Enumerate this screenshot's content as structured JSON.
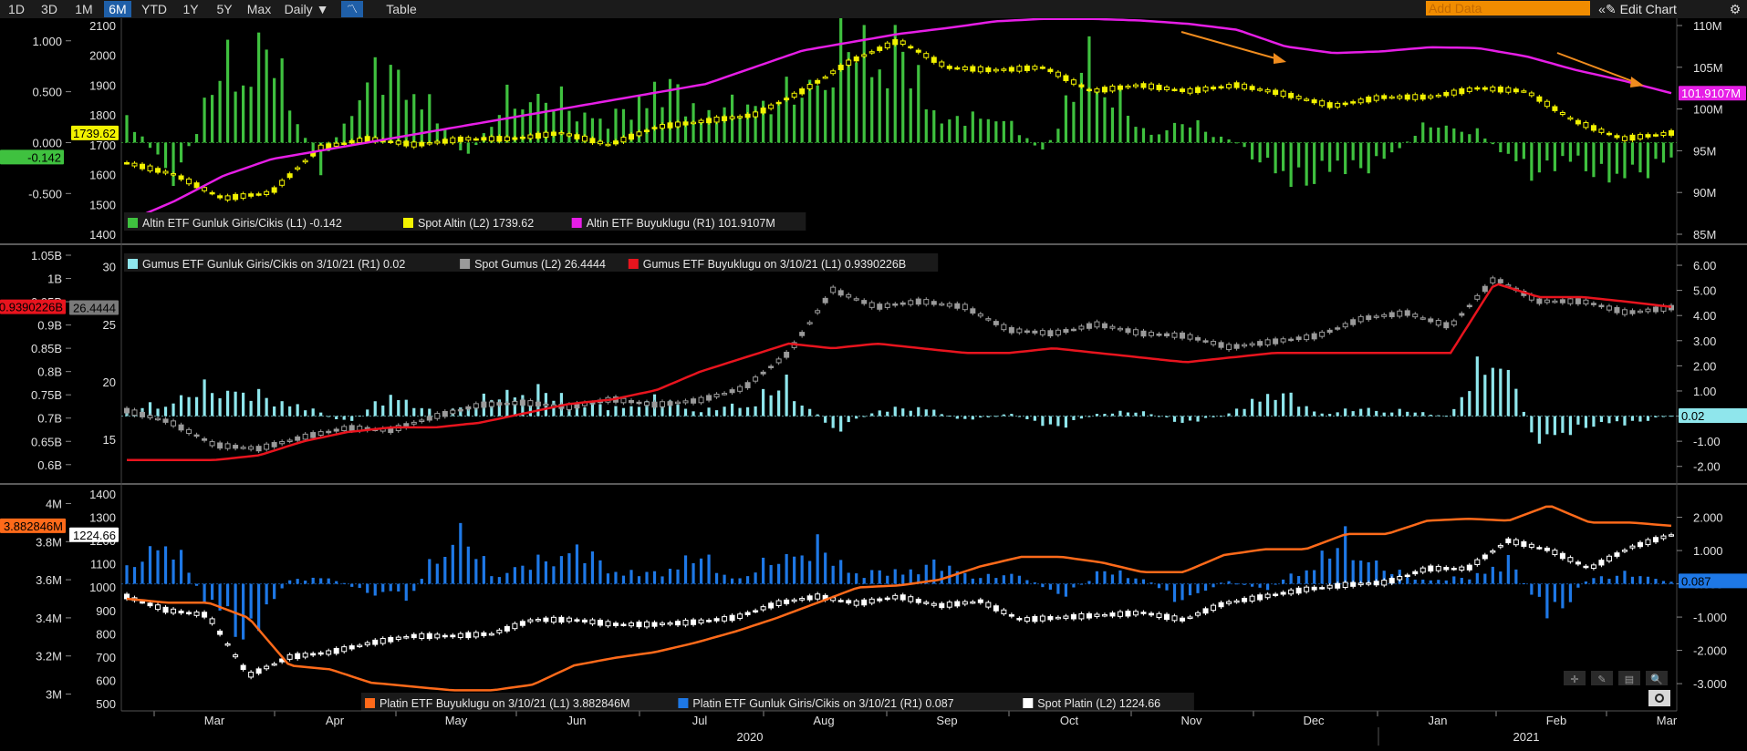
{
  "toolbar": {
    "ranges": [
      "1D",
      "3D",
      "1M",
      "6M",
      "YTD",
      "1Y",
      "5Y",
      "Max"
    ],
    "active_range": "6M",
    "interval": "Daily ▼",
    "table_label": "Table",
    "add_data_placeholder": "Add Data",
    "edit_chart_label": "Edit Chart",
    "rewind_icon": "«",
    "edit_icon": "✎",
    "settings_icon": "⚙"
  },
  "colors": {
    "gold_flow": "#3fc13f",
    "gold_spot": "#f2f200",
    "gold_size": "#e61ee6",
    "silver_flow": "#8fe6ec",
    "silver_spot": "#9a9a9a",
    "silver_size": "#e8141e",
    "plat_size": "#ff6a1a",
    "plat_flow": "#1e78e6",
    "plat_spot": "#ffffff",
    "arrow": "#f08c1e"
  },
  "x_axis": {
    "months": [
      "Mar",
      "Apr",
      "May",
      "Jun",
      "Jul",
      "Aug",
      "Sep",
      "Oct",
      "Nov",
      "Dec",
      "Jan",
      "Feb",
      "Mar"
    ],
    "years": [
      "2020",
      "2021"
    ]
  },
  "panel_tools": [
    "✛",
    "✎",
    "▤",
    "🔍"
  ],
  "chart_data": [
    {
      "type": "bar",
      "panel": "gold",
      "left_axis_1": {
        "ticks": [
          "1.000",
          "0.500",
          "0.000",
          "-0.500"
        ],
        "ylim": [
          -0.9,
          1.15
        ]
      },
      "left_axis_2": {
        "ticks": [
          "2100",
          "2000",
          "1900",
          "1800",
          "1700",
          "1600",
          "1500",
          "1400"
        ],
        "ylim": [
          1400,
          2100
        ]
      },
      "right_axis": {
        "ticks": [
          "110M",
          "105M",
          "100M",
          "95M",
          "90M",
          "85M"
        ],
        "ylim": [
          85,
          110
        ]
      },
      "last_value_tags": {
        "flow": "-0.142",
        "spot": "1739.62",
        "size": "101.9107M"
      },
      "legend": [
        {
          "name": "Altin ETF Gunluk Giris/Cikis (L1)",
          "value": "-0.142",
          "color_key": "gold_flow"
        },
        {
          "name": "Spot Altin (L2)",
          "value": "1739.62",
          "color_key": "gold_spot"
        },
        {
          "name": "Altin ETF Buyuklugu (R1)",
          "value": "101.9107M",
          "color_key": "gold_size"
        }
      ],
      "size_series": [
        86.5,
        89,
        92,
        94,
        95,
        96,
        97,
        98,
        99,
        100,
        101,
        102,
        103,
        105,
        107,
        108,
        109,
        109.7,
        110.5,
        110.8,
        110.8,
        110.6,
        110.2,
        109.5,
        107.5,
        106.7,
        106.9,
        107.4,
        107.3,
        106.3,
        104.7,
        103.4,
        101.9
      ],
      "spot_series": [
        1640,
        1600,
        1520,
        1540,
        1690,
        1720,
        1700,
        1720,
        1720,
        1740,
        1700,
        1760,
        1780,
        1800,
        1880,
        1980,
        2050,
        1960,
        1950,
        1960,
        1880,
        1900,
        1880,
        1900,
        1870,
        1830,
        1860,
        1860,
        1890,
        1880,
        1780,
        1720,
        1739.62
      ],
      "flow_series": [
        0.3,
        -0.4,
        0.8,
        0.9,
        -0.3,
        0.7,
        0.6,
        -0.2,
        0.5,
        0.4,
        0.2,
        0.6,
        0.3,
        0.4,
        0.5,
        1.0,
        0.9,
        0.2,
        0.3,
        -0.1,
        0.9,
        0.1,
        0.2,
        0.0,
        -0.4,
        -0.3,
        -0.2,
        0.2,
        0.1,
        -0.3,
        -0.2,
        -0.4,
        -0.142
      ]
    },
    {
      "type": "bar",
      "panel": "silver",
      "left_axis_1": {
        "ticks": [
          "1.05B",
          "1B",
          "0.95B",
          "0.9B",
          "0.85B",
          "0.8B",
          "0.75B",
          "0.7B",
          "0.65B",
          "0.6B"
        ],
        "ylim": [
          0.58,
          1.05
        ]
      },
      "left_axis_2": {
        "ticks": [
          "30",
          "25",
          "20",
          "15"
        ],
        "ylim": [
          12,
          31
        ]
      },
      "right_axis": {
        "ticks": [
          "6.00",
          "5.00",
          "4.00",
          "3.00",
          "2.00",
          "1.00",
          "0.00",
          "-1.00",
          "-2.00"
        ],
        "ylim": [
          -2.3,
          6.4
        ]
      },
      "last_value_tags": {
        "size": "0.9390226B",
        "spot": "26.4444",
        "flow": "0.02"
      },
      "legend": [
        {
          "name": "Gumus ETF Gunluk Giris/Cikis on 3/10/21 (R1)",
          "value": "0.02",
          "color_key": "silver_flow"
        },
        {
          "name": "Spot Gumus (L2)",
          "value": "26.4444",
          "color_key": "silver_spot"
        },
        {
          "name": "Gumus ETF Buyuklugu on 3/10/21 (L1)",
          "value": "0.9390226B",
          "color_key": "silver_size"
        }
      ],
      "size_series": [
        0.61,
        0.61,
        0.61,
        0.62,
        0.65,
        0.67,
        0.68,
        0.68,
        0.69,
        0.71,
        0.73,
        0.74,
        0.76,
        0.8,
        0.83,
        0.86,
        0.85,
        0.86,
        0.85,
        0.84,
        0.84,
        0.85,
        0.84,
        0.83,
        0.82,
        0.83,
        0.84,
        0.84,
        0.84,
        0.84,
        0.84,
        0.99,
        0.96,
        0.96,
        0.95,
        0.939
      ],
      "spot_series": [
        17.5,
        16.5,
        14.5,
        14.2,
        15.2,
        16.0,
        15.8,
        17.0,
        18.0,
        18.2,
        17.8,
        18.5,
        18.0,
        18.4,
        19.5,
        22.5,
        28.0,
        26.5,
        27.0,
        26.5,
        24.5,
        24.2,
        25.0,
        24.2,
        24.0,
        23.0,
        23.5,
        24.0,
        25.5,
        26.0,
        24.8,
        29.0,
        27.0,
        27.0,
        26.0,
        26.4444
      ],
      "flow_series": [
        0.2,
        0.6,
        1.2,
        0.8,
        0.4,
        -0.3,
        0.9,
        0.1,
        0.6,
        1.1,
        0.7,
        0.3,
        0.7,
        0.2,
        0.5,
        1.3,
        -0.6,
        0.2,
        0.4,
        -0.2,
        0.1,
        -0.5,
        0.1,
        0.2,
        -0.3,
        0.1,
        1.1,
        0.1,
        0.3,
        0.2,
        0.0,
        3.0,
        -1.2,
        -0.4,
        -0.3,
        0.02
      ]
    },
    {
      "type": "bar",
      "panel": "platinum",
      "left_axis_1": {
        "ticks": [
          "4M",
          "3.8M",
          "3.6M",
          "3.4M",
          "3.2M",
          "3M"
        ],
        "ylim": [
          2.95,
          4.05
        ]
      },
      "left_axis_2": {
        "ticks": [
          "1400",
          "1300",
          "1200",
          "1100",
          "1000",
          "900",
          "800",
          "700",
          "600",
          "500"
        ],
        "ylim": [
          500,
          1400
        ]
      },
      "right_axis": {
        "ticks": [
          "2.000",
          "1.000",
          "0.000",
          "-1.000",
          "-2.000",
          "-3.000"
        ],
        "ylim": [
          -3.6,
          2.7
        ]
      },
      "last_value_tags": {
        "size": "3.882846M",
        "spot": "1224.66",
        "flow": "0.087"
      },
      "legend": [
        {
          "name": "Platin ETF Buyuklugu on 3/10/21 (L1)",
          "value": "3.882846M",
          "color_key": "plat_size"
        },
        {
          "name": "Platin ETF Gunluk Giris/Cikis on 3/10/21 (R1)",
          "value": "0.087",
          "color_key": "plat_flow"
        },
        {
          "name": "Spot Platin (L2)",
          "value": "1224.66",
          "color_key": "plat_spot"
        }
      ],
      "size_series": [
        3.5,
        3.48,
        3.48,
        3.4,
        3.15,
        3.13,
        3.06,
        3.04,
        3.02,
        3.02,
        3.05,
        3.15,
        3.19,
        3.22,
        3.27,
        3.33,
        3.4,
        3.48,
        3.56,
        3.57,
        3.6,
        3.67,
        3.72,
        3.72,
        3.69,
        3.64,
        3.64,
        3.73,
        3.76,
        3.76,
        3.84,
        3.84,
        3.91,
        3.92,
        3.91,
        3.99,
        3.9,
        3.9,
        3.883
      ],
      "spot_series": [
        960,
        900,
        880,
        620,
        700,
        720,
        760,
        790,
        790,
        800,
        860,
        860,
        840,
        840,
        850,
        870,
        930,
        960,
        930,
        960,
        920,
        940,
        860,
        870,
        880,
        890,
        860,
        930,
        960,
        990,
        1010,
        1020,
        1080,
        1080,
        1200,
        1160,
        1080,
        1170,
        1224.66
      ],
      "flow_series": [
        0.4,
        1.5,
        -0.7,
        -1.6,
        0.1,
        0.2,
        -0.3,
        -0.4,
        1.8,
        0.3,
        0.6,
        1.1,
        0.4,
        0.3,
        0.9,
        0.1,
        0.8,
        1.1,
        0.3,
        0.4,
        0.6,
        0.2,
        0.3,
        -0.4,
        0.4,
        0.2,
        -0.6,
        0.1,
        -0.2,
        0.5,
        1.3,
        0.4,
        0.1,
        0.2,
        0.7,
        -1.1,
        0.2,
        0.3,
        0.087
      ]
    }
  ]
}
